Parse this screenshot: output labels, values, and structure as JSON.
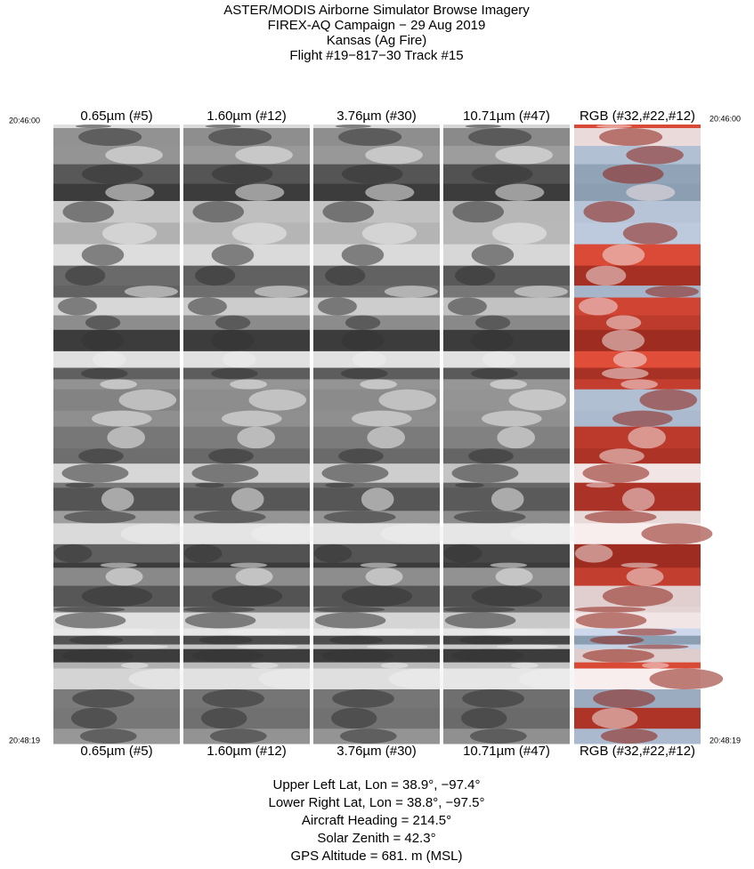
{
  "header": {
    "lines": [
      "ASTER/MODIS Airborne Simulator Browse Imagery",
      "FIREX-AQ Campaign − 29 Aug 2019",
      "Kansas (Ag Fire)",
      "Flight #19−817−30 Track #15"
    ]
  },
  "times": {
    "start": "20:46:00",
    "end": "20:48:19"
  },
  "panels": [
    "0.65µm (#5)",
    "1.60µm (#12)",
    "3.76µm (#30)",
    "10.71µm (#47)",
    "RGB (#32,#22,#12)"
  ],
  "footer": {
    "lines": [
      "Upper Left Lat, Lon =   38.9°,  −97.4°",
      "Lower Right Lat, Lon =   38.8°,  −97.5°",
      "Aircraft Heading =  214.5°",
      "Solar Zenith =   42.3°",
      "GPS Altitude =    681. m (MSL)"
    ]
  }
}
